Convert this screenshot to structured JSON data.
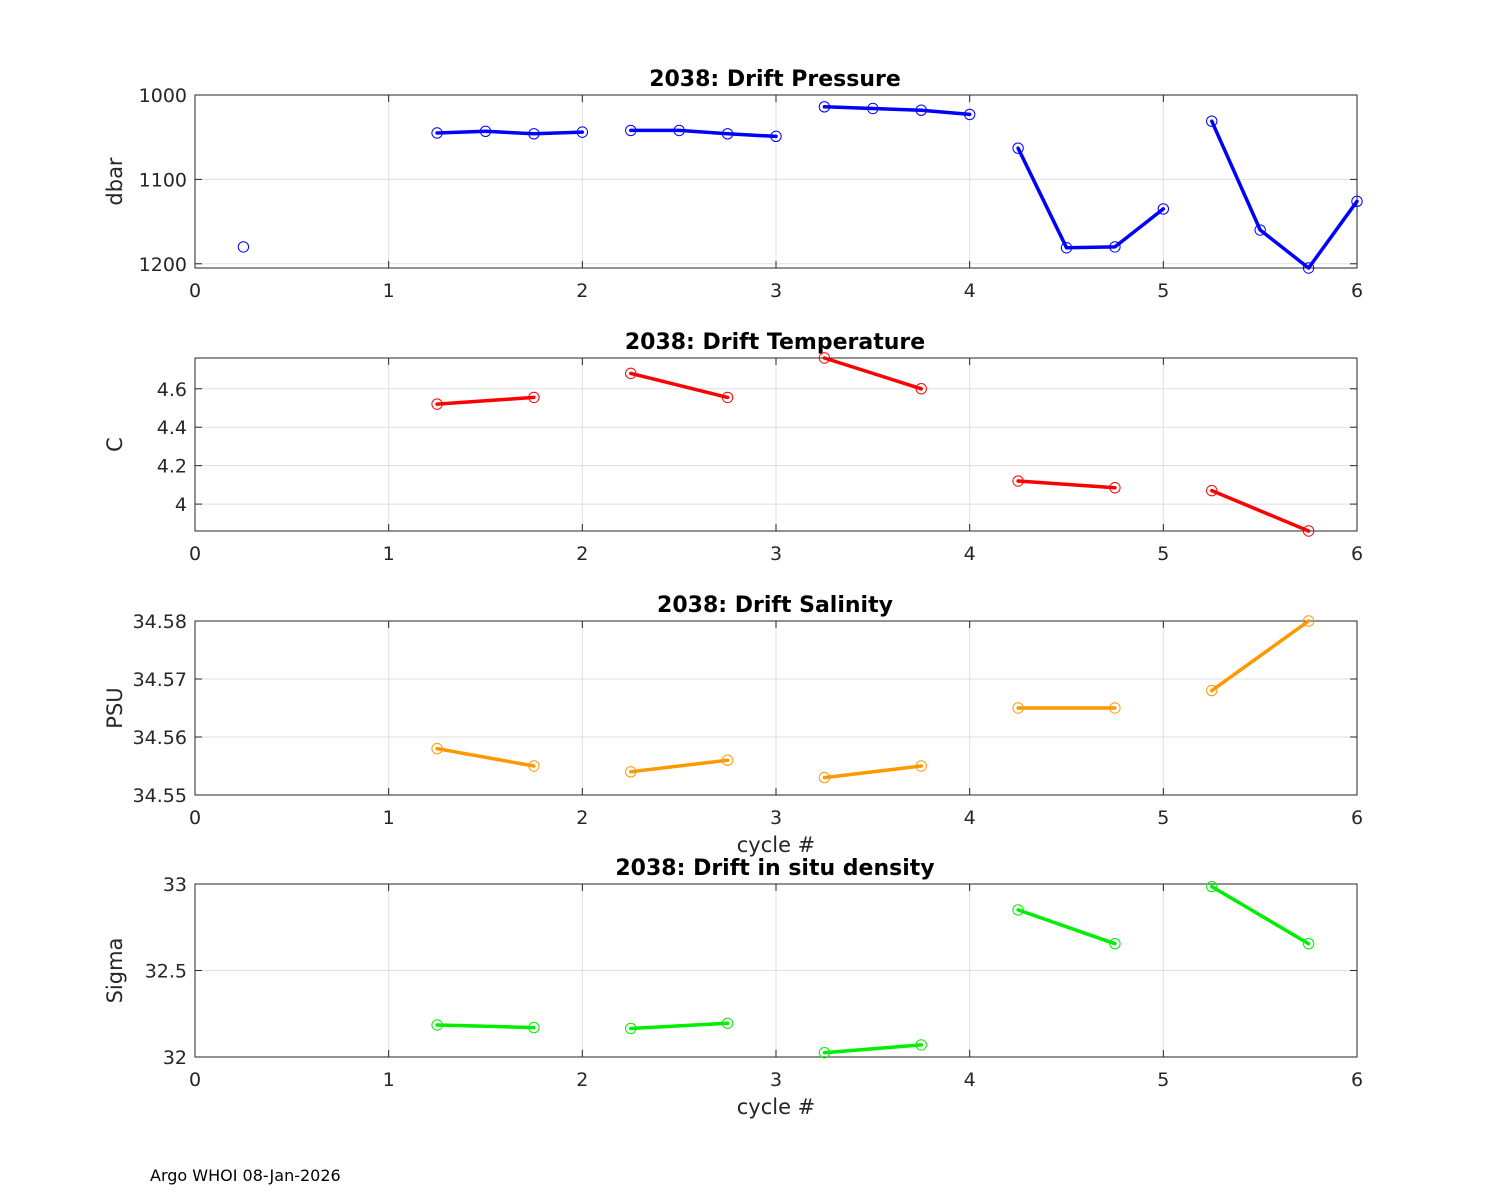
{
  "footer": "Argo WHOI 08-Jan-2026",
  "chart_data": [
    {
      "type": "line",
      "title": "2038: Drift Pressure",
      "xlabel": "",
      "ylabel": "dbar",
      "xlim": [
        0,
        6
      ],
      "ylim": [
        1000,
        1205
      ],
      "y_reversed": true,
      "x_ticks": [
        "0",
        "1",
        "2",
        "3",
        "4",
        "5",
        "6"
      ],
      "y_ticks": [
        1000,
        1100,
        1200
      ],
      "y_tick_labels": [
        "1000",
        "1100",
        "1200"
      ],
      "grid": true,
      "color": "#0000ff",
      "segments": [
        {
          "x": [
            0.25
          ],
          "y": [
            1180
          ]
        },
        {
          "x": [
            1.25,
            1.5,
            1.75,
            2.0
          ],
          "y": [
            1045,
            1043,
            1046,
            1044
          ]
        },
        {
          "x": [
            2.25,
            2.5,
            2.75,
            3.0
          ],
          "y": [
            1042,
            1042,
            1046,
            1049
          ]
        },
        {
          "x": [
            3.25,
            3.5,
            3.75,
            4.0
          ],
          "y": [
            1014,
            1016,
            1018,
            1023
          ]
        },
        {
          "x": [
            4.25,
            4.5,
            4.75,
            5.0
          ],
          "y": [
            1063,
            1181,
            1180,
            1135
          ]
        },
        {
          "x": [
            5.25,
            5.5,
            5.75,
            6.0
          ],
          "y": [
            1031,
            1160,
            1205,
            1126
          ]
        }
      ]
    },
    {
      "type": "line",
      "title": "2038: Drift Temperature",
      "xlabel": "",
      "ylabel": "C",
      "xlim": [
        0,
        6
      ],
      "ylim": [
        3.86,
        4.76
      ],
      "y_reversed": false,
      "x_ticks": [
        "0",
        "1",
        "2",
        "3",
        "4",
        "5",
        "6"
      ],
      "y_ticks": [
        4.0,
        4.2,
        4.4,
        4.6
      ],
      "y_tick_labels": [
        "4",
        "4.2",
        "4.4",
        "4.6"
      ],
      "grid": true,
      "color": "#ff0000",
      "segments": [
        {
          "x": [
            1.25,
            1.75
          ],
          "y": [
            4.52,
            4.555
          ]
        },
        {
          "x": [
            2.25,
            2.75
          ],
          "y": [
            4.68,
            4.555
          ]
        },
        {
          "x": [
            3.25,
            3.75
          ],
          "y": [
            4.76,
            4.6
          ]
        },
        {
          "x": [
            4.25,
            4.75
          ],
          "y": [
            4.12,
            4.085
          ]
        },
        {
          "x": [
            5.25,
            5.75
          ],
          "y": [
            4.07,
            3.86
          ]
        }
      ]
    },
    {
      "type": "line",
      "title": "2038: Drift Salinity",
      "xlabel": "cycle #",
      "ylabel": "PSU",
      "xlim": [
        0,
        6
      ],
      "ylim": [
        34.55,
        34.58
      ],
      "y_reversed": false,
      "x_ticks": [
        "0",
        "1",
        "2",
        "3",
        "4",
        "5",
        "6"
      ],
      "y_ticks": [
        34.55,
        34.56,
        34.57,
        34.58
      ],
      "y_tick_labels": [
        "34.55",
        "34.56",
        "34.57",
        "34.58"
      ],
      "grid": true,
      "color": "#ff9900",
      "segments": [
        {
          "x": [
            1.25,
            1.75
          ],
          "y": [
            34.558,
            34.555
          ]
        },
        {
          "x": [
            2.25,
            2.75
          ],
          "y": [
            34.554,
            34.556
          ]
        },
        {
          "x": [
            3.25,
            3.75
          ],
          "y": [
            34.553,
            34.555
          ]
        },
        {
          "x": [
            4.25,
            4.75
          ],
          "y": [
            34.565,
            34.565
          ]
        },
        {
          "x": [
            5.25,
            5.75
          ],
          "y": [
            34.568,
            34.58
          ]
        }
      ]
    },
    {
      "type": "line",
      "title": "2038: Drift in situ density",
      "xlabel": "cycle #",
      "ylabel": "Sigma",
      "xlim": [
        0,
        6
      ],
      "ylim": [
        32,
        33
      ],
      "y_reversed": false,
      "x_ticks": [
        "0",
        "1",
        "2",
        "3",
        "4",
        "5",
        "6"
      ],
      "y_ticks": [
        32,
        32.5,
        33
      ],
      "y_tick_labels": [
        "32",
        "32.5",
        "33"
      ],
      "grid": true,
      "color": "#00ee00",
      "segments": [
        {
          "x": [
            1.25,
            1.75
          ],
          "y": [
            32.185,
            32.17
          ]
        },
        {
          "x": [
            2.25,
            2.75
          ],
          "y": [
            32.165,
            32.195
          ]
        },
        {
          "x": [
            3.25,
            3.75
          ],
          "y": [
            32.025,
            32.07
          ]
        },
        {
          "x": [
            4.25,
            4.75
          ],
          "y": [
            32.85,
            32.655
          ]
        },
        {
          "x": [
            5.25,
            5.75
          ],
          "y": [
            32.985,
            32.655
          ]
        }
      ]
    }
  ]
}
